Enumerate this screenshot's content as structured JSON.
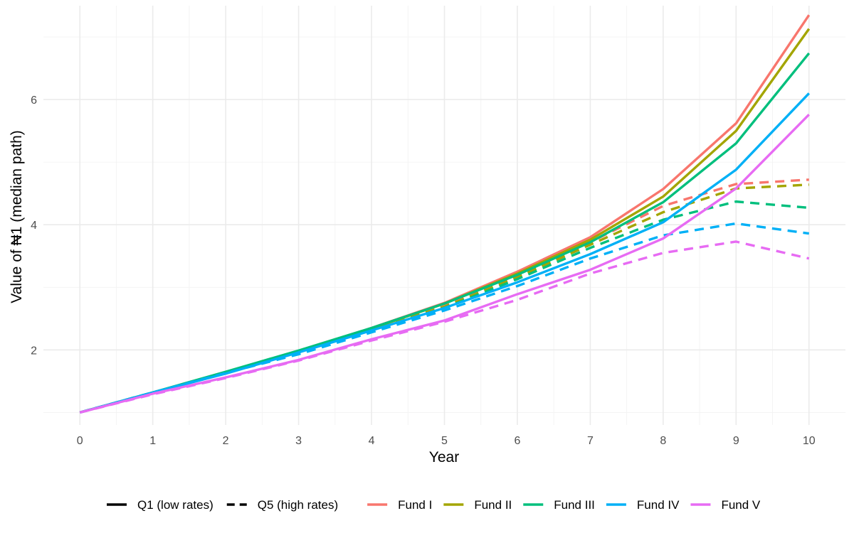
{
  "chart_data": {
    "type": "line",
    "xlabel": "Year",
    "ylabel": "Value of ₦1 (median path)",
    "x": [
      0,
      1,
      2,
      3,
      4,
      5,
      6,
      7,
      8,
      9,
      10
    ],
    "xlim": [
      -0.5,
      10.5
    ],
    "ylim": [
      0.8,
      7.5
    ],
    "x_ticks": [
      "0",
      "1",
      "2",
      "3",
      "4",
      "5",
      "6",
      "7",
      "8",
      "9",
      "10"
    ],
    "y_ticks": [
      "2",
      "4",
      "6"
    ],
    "y_tick_values": [
      2,
      4,
      6
    ],
    "grid": true,
    "legend_position": "bottom",
    "linetype_legend": [
      {
        "label": "Q1 (low rates)",
        "dash": "solid"
      },
      {
        "label": "Q5 (high rates)",
        "dash": "dashed"
      }
    ],
    "color_legend": [
      {
        "label": "Fund I",
        "color": "#F8766D"
      },
      {
        "label": "Fund II",
        "color": "#A3A500"
      },
      {
        "label": "Fund III",
        "color": "#00BF7D"
      },
      {
        "label": "Fund IV",
        "color": "#00B0F6"
      },
      {
        "label": "Fund V",
        "color": "#E76BF3"
      }
    ],
    "series": [
      {
        "fund": "Fund I",
        "scenario": "Q1",
        "color": "#F8766D",
        "dash": "solid",
        "values": [
          1.0,
          1.32,
          1.64,
          1.98,
          2.35,
          2.75,
          3.25,
          3.8,
          4.57,
          5.62,
          7.35
        ]
      },
      {
        "fund": "Fund I",
        "scenario": "Q5",
        "color": "#F8766D",
        "dash": "dashed",
        "values": [
          1.0,
          1.32,
          1.63,
          1.96,
          2.33,
          2.7,
          3.18,
          3.72,
          4.3,
          4.65,
          4.72
        ]
      },
      {
        "fund": "Fund II",
        "scenario": "Q1",
        "color": "#A3A500",
        "dash": "solid",
        "values": [
          1.0,
          1.32,
          1.64,
          1.98,
          2.34,
          2.74,
          3.22,
          3.76,
          4.45,
          5.5,
          7.13
        ]
      },
      {
        "fund": "Fund II",
        "scenario": "Q5",
        "color": "#A3A500",
        "dash": "dashed",
        "values": [
          1.0,
          1.32,
          1.63,
          1.96,
          2.32,
          2.69,
          3.16,
          3.68,
          4.2,
          4.58,
          4.64
        ]
      },
      {
        "fund": "Fund III",
        "scenario": "Q1",
        "color": "#00BF7D",
        "dash": "solid",
        "values": [
          1.0,
          1.32,
          1.65,
          1.99,
          2.35,
          2.74,
          3.2,
          3.72,
          4.36,
          5.3,
          6.74
        ]
      },
      {
        "fund": "Fund III",
        "scenario": "Q5",
        "color": "#00BF7D",
        "dash": "dashed",
        "values": [
          1.0,
          1.32,
          1.63,
          1.96,
          2.31,
          2.67,
          3.13,
          3.63,
          4.08,
          4.37,
          4.27
        ]
      },
      {
        "fund": "Fund IV",
        "scenario": "Q1",
        "color": "#00B0F6",
        "dash": "solid",
        "values": [
          1.0,
          1.32,
          1.62,
          1.96,
          2.31,
          2.67,
          3.08,
          3.53,
          4.04,
          4.88,
          6.1
        ]
      },
      {
        "fund": "Fund IV",
        "scenario": "Q5",
        "color": "#00B0F6",
        "dash": "dashed",
        "values": [
          1.0,
          1.32,
          1.63,
          1.93,
          2.28,
          2.63,
          3.02,
          3.46,
          3.83,
          4.02,
          3.86
        ]
      },
      {
        "fund": "Fund V",
        "scenario": "Q1",
        "color": "#E76BF3",
        "dash": "solid",
        "values": [
          1.0,
          1.3,
          1.56,
          1.84,
          2.17,
          2.47,
          2.89,
          3.28,
          3.78,
          4.58,
          5.76
        ]
      },
      {
        "fund": "Fund V",
        "scenario": "Q5",
        "color": "#E76BF3",
        "dash": "dashed",
        "values": [
          1.0,
          1.29,
          1.55,
          1.83,
          2.15,
          2.45,
          2.8,
          3.22,
          3.55,
          3.73,
          3.46
        ]
      }
    ]
  }
}
